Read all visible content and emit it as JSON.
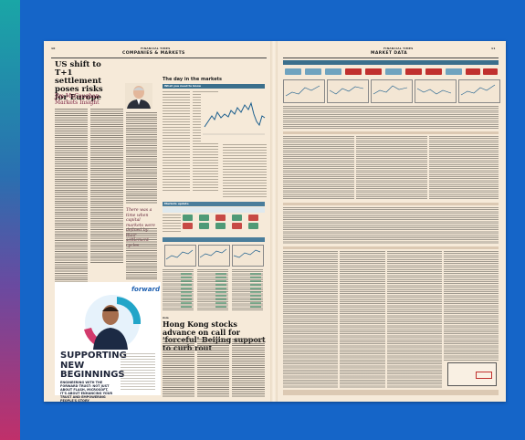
{
  "left_page": {
    "folio_left": "10",
    "folio_center": "FINANCIAL TIMES",
    "section": "COMPANIES & MARKETS",
    "headline": "US shift to T+1 settlement poses risks for Europe",
    "byline": "Jim McCaughan",
    "byline_sub": "Markets Insight",
    "pull_quote": "There was a time when capital markets were defined by their settlement cycles",
    "markets_header": "The day in the markets",
    "markets_box": "What you need to know",
    "markets_update": "Markets update",
    "ad_logo": "forward",
    "ad_headline": "SUPPORTING NEW BEGINNINGS",
    "ad_sub": "ENGINEERING WITH THE FORWARD TRUST: NOT JUST ABOUT FLASH, MICROSOFT, IT'S ABOUT ENHANCING YOUR TRUST AND EMPOWERING PEOPLE'S STORY",
    "lower_story_kicker": "Asia",
    "lower_story": "Hong Kong stocks advance on call for 'forceful' Beijing support to curb rout"
  },
  "right_page": {
    "folio_right": "11",
    "folio_center": "FINANCIAL TIMES",
    "section": "MARKET DATA"
  },
  "colors": {
    "background": "#1565c8",
    "paper": "#f6ead9",
    "accent_teal": "#3b6f8c",
    "accent_red": "#c0302e",
    "accent_blue": "#1d5fb0"
  }
}
